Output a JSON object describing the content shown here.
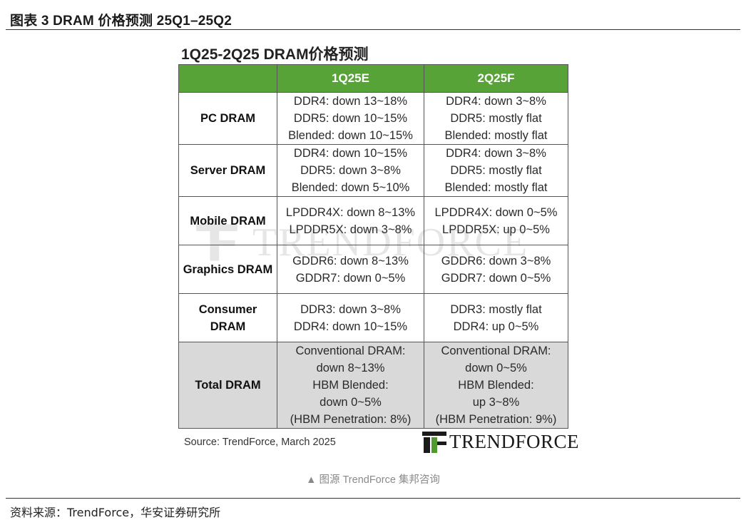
{
  "figure_title": "图表 3 DRAM 价格预测 25Q1–25Q2",
  "table_title": "1Q25-2Q25 DRAM价格预测",
  "columns": [
    "",
    "1Q25E",
    "2Q25F"
  ],
  "rows": [
    {
      "category": [
        "PC DRAM"
      ],
      "q1": [
        "DDR4: down 13~18%",
        "DDR5: down 10~15%",
        "Blended: down 10~15%"
      ],
      "q2": [
        "DDR4: down 3~8%",
        "DDR5: mostly flat",
        "Blended: mostly flat"
      ]
    },
    {
      "category": [
        "Server DRAM"
      ],
      "q1": [
        "DDR4: down 10~15%",
        "DDR5: down 3~8%",
        "Blended: down 5~10%"
      ],
      "q2": [
        "DDR4: down 3~8%",
        "DDR5: mostly flat",
        "Blended: mostly flat"
      ]
    },
    {
      "category": [
        "Mobile DRAM"
      ],
      "q1": [
        "LPDDR4X: down 8~13%",
        "LPDDR5X: down 3~8%"
      ],
      "q2": [
        "LPDDR4X: down 0~5%",
        "LPDDR5X: up 0~5%"
      ]
    },
    {
      "category": [
        "Graphics DRAM"
      ],
      "q1": [
        "GDDR6: down 8~13%",
        "GDDR7: down 0~5%"
      ],
      "q2": [
        "GDDR6: down 3~8%",
        "GDDR7: down 0~5%"
      ]
    },
    {
      "category": [
        "Consumer",
        "DRAM"
      ],
      "q1": [
        "DDR3: down 3~8%",
        "DDR4: down 10~15%"
      ],
      "q2": [
        "DDR3: mostly flat",
        "DDR4: up 0~5%"
      ]
    },
    {
      "category": [
        "Total DRAM"
      ],
      "q1": [
        "Conventional DRAM:",
        "down 8~13%",
        "HBM Blended:",
        "down 0~5%",
        "(HBM Penetration: 8%)"
      ],
      "q2": [
        "Conventional DRAM:",
        "down 0~5%",
        "HBM Blended:",
        "up 3~8%",
        "(HBM Penetration: 9%)"
      ]
    }
  ],
  "source_note": "Source: TrendForce, March 2025",
  "brand_text": "TRENDFORCE",
  "watermark_text": "TRENDFORCE",
  "image_caption": "▲ 图源 TrendForce 集邦咨询",
  "footer_source": "资料来源：TrendForce，华安证券研究所",
  "colors": {
    "header_green": "#57a337",
    "total_row_gray": "#d9d9d9"
  },
  "icons": {
    "brand_logo": "trendforce-logo-icon"
  }
}
